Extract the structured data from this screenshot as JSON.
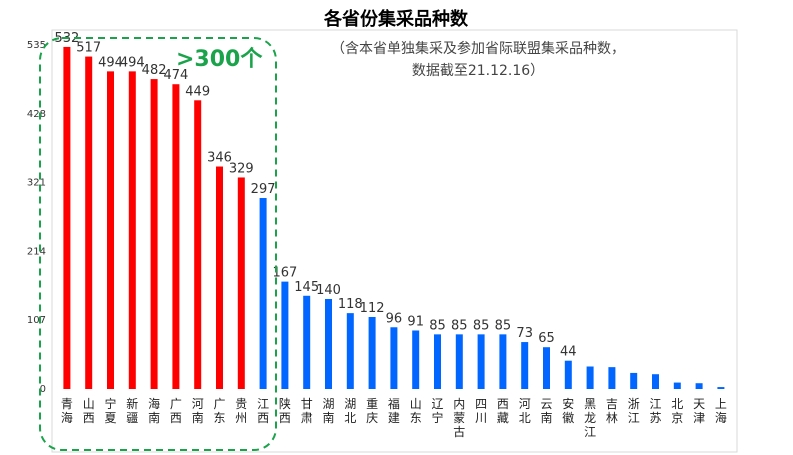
{
  "chart_data": {
    "type": "bar",
    "title": "各省份集采品种数",
    "annotation_lines": [
      "（含本省单独集采及参加省际联盟集采品种数，",
      "数据截至21.12.16）"
    ],
    "callout": ">300个",
    "categories": [
      "青海",
      "山西",
      "宁夏",
      "新疆",
      "海南",
      "广西",
      "河南",
      "广东",
      "贵州",
      "江西",
      "陕西",
      "甘肃",
      "湖南",
      "湖北",
      "重庆",
      "福建",
      "山东",
      "辽宁",
      "内蒙古",
      "四川",
      "西藏",
      "河北",
      "云南",
      "安徽",
      "黑龙江",
      "吉林",
      "浙江",
      "江苏",
      "北京",
      "天津",
      "上海"
    ],
    "values": [
      532,
      517,
      494,
      494,
      482,
      474,
      449,
      346,
      329,
      297,
      167,
      145,
      140,
      118,
      112,
      96,
      91,
      85,
      85,
      85,
      85,
      73,
      65,
      44,
      null,
      null,
      null,
      null,
      null,
      null,
      null
    ],
    "approx_unlabeled_values": [
      35,
      34,
      25,
      23,
      10,
      9,
      3
    ],
    "ylim": [
      0,
      535
    ],
    "yticks": [
      0,
      107,
      214,
      321,
      428,
      535
    ],
    "colors": {
      "high": "#ff0000",
      "low": "#0066ff",
      "callout": "#1aa34a"
    },
    "highlight_threshold": 300,
    "grid": false
  }
}
